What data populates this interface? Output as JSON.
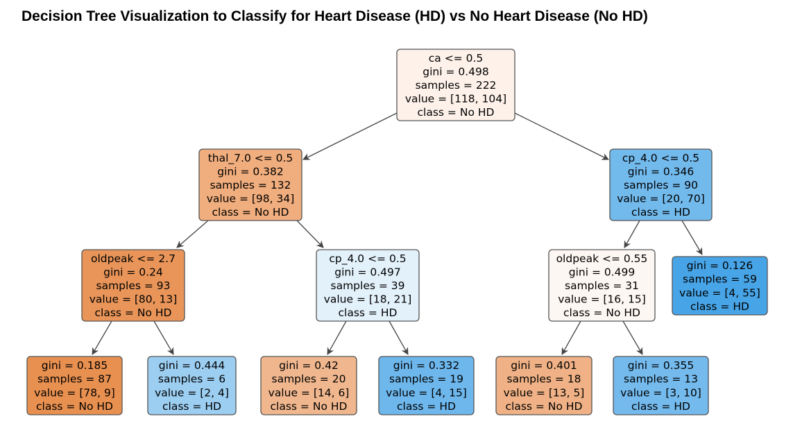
{
  "title": "Decision Tree Visualization to Classify for Heart Disease (HD) vs No Heart Disease (No HD)",
  "colors": {
    "no_hd_strong": "#e58139",
    "hd_strong": "#399de5",
    "edge": "#444444",
    "border": "#555555"
  },
  "nodes": [
    {
      "id": "n0",
      "lines": [
        "ca <= 0.5",
        "gini = 0.498",
        "samples = 222",
        "value = [118, 104]",
        "class = No HD"
      ],
      "fill": "#fdf1e9"
    },
    {
      "id": "n1",
      "lines": [
        "thal_7.0 <= 0.5",
        "gini = 0.382",
        "samples = 132",
        "value = [98, 34]",
        "class = No HD"
      ],
      "fill": "#f0ad7d"
    },
    {
      "id": "n2",
      "lines": [
        "cp_4.0 <= 0.5",
        "gini = 0.346",
        "samples = 90",
        "value = [20, 70]",
        "class = HD"
      ],
      "fill": "#72b9ec"
    },
    {
      "id": "n3",
      "lines": [
        "oldpeak <= 2.7",
        "gini = 0.24",
        "samples = 93",
        "value = [80, 13]",
        "class = No HD"
      ],
      "fill": "#e99559"
    },
    {
      "id": "n4",
      "lines": [
        "cp_4.0 <= 0.5",
        "gini = 0.497",
        "samples = 39",
        "value = [18, 21]",
        "class = HD"
      ],
      "fill": "#e3f1fb"
    },
    {
      "id": "n5",
      "lines": [
        "oldpeak <= 0.55",
        "gini = 0.499",
        "samples = 31",
        "value = [16, 15]",
        "class = No HD"
      ],
      "fill": "#fdf7f3"
    },
    {
      "id": "n6",
      "lines": [
        "gini = 0.126",
        "samples = 59",
        "value = [4, 55]",
        "class = HD"
      ],
      "fill": "#47a4e7"
    },
    {
      "id": "n7",
      "lines": [
        "gini = 0.185",
        "samples = 87",
        "value = [78, 9]",
        "class = No HD"
      ],
      "fill": "#e89050"
    },
    {
      "id": "n8",
      "lines": [
        "gini = 0.444",
        "samples = 6",
        "value = [2, 4]",
        "class = HD"
      ],
      "fill": "#9ccef2"
    },
    {
      "id": "n9",
      "lines": [
        "gini = 0.42",
        "samples = 20",
        "value = [14, 6]",
        "class = No HD"
      ],
      "fill": "#f0b78e"
    },
    {
      "id": "n10",
      "lines": [
        "gini = 0.332",
        "samples = 19",
        "value = [4, 15]",
        "class = HD"
      ],
      "fill": "#6eb7ec"
    },
    {
      "id": "n11",
      "lines": [
        "gini = 0.401",
        "samples = 18",
        "value = [13, 5]",
        "class = No HD"
      ],
      "fill": "#efb185"
    },
    {
      "id": "n12",
      "lines": [
        "gini = 0.355",
        "samples = 13",
        "value = [3, 10]",
        "class = HD"
      ],
      "fill": "#74baed"
    }
  ],
  "edges": [
    [
      "n0",
      "n1"
    ],
    [
      "n0",
      "n2"
    ],
    [
      "n1",
      "n3"
    ],
    [
      "n1",
      "n4"
    ],
    [
      "n2",
      "n5"
    ],
    [
      "n2",
      "n6"
    ],
    [
      "n3",
      "n7"
    ],
    [
      "n3",
      "n8"
    ],
    [
      "n4",
      "n9"
    ],
    [
      "n4",
      "n10"
    ],
    [
      "n5",
      "n11"
    ],
    [
      "n5",
      "n12"
    ]
  ]
}
